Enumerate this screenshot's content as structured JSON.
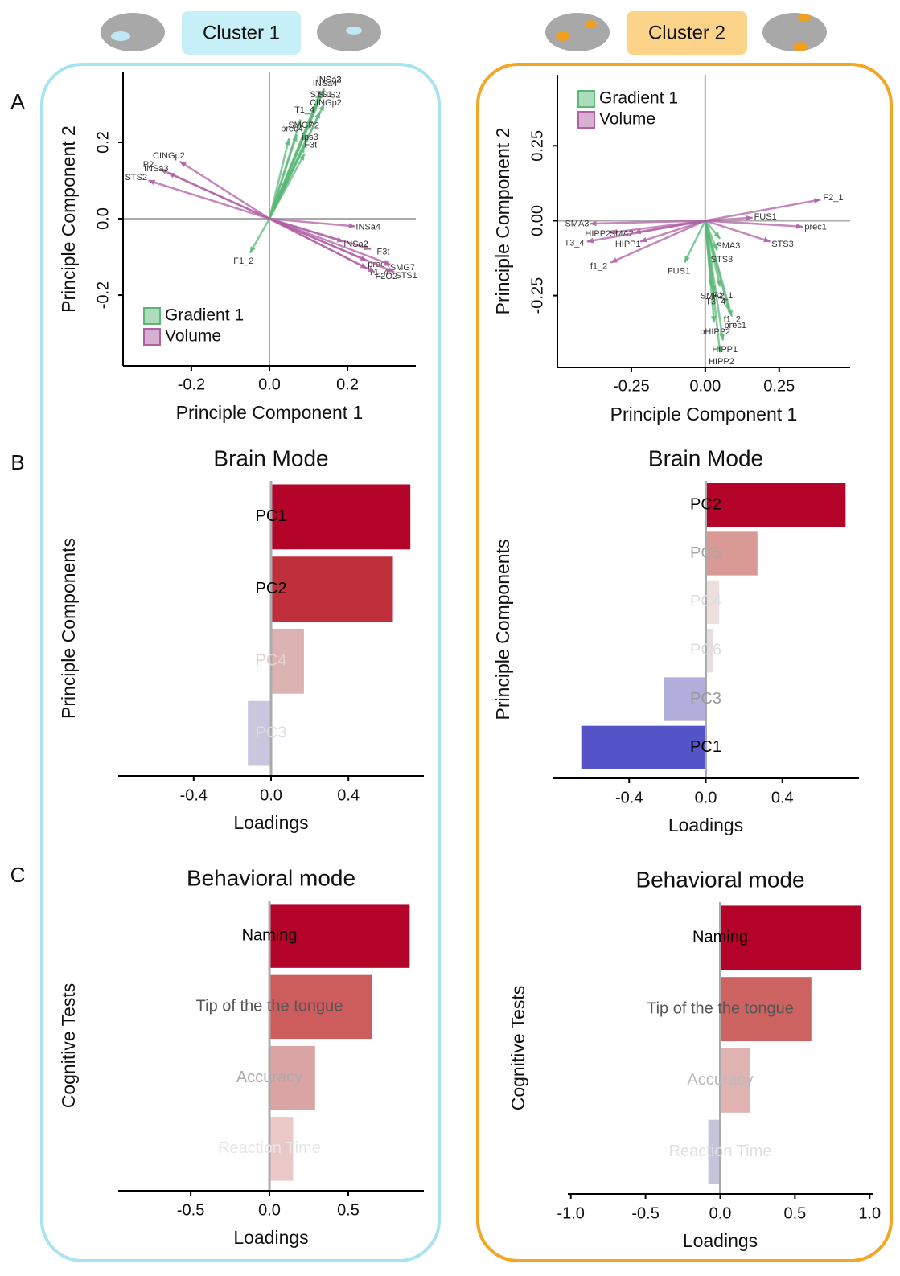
{
  "clusters": [
    "Cluster 1",
    "Cluster 2"
  ],
  "panel_letters": [
    "A",
    "B",
    "C"
  ],
  "chart_data": [
    {
      "type": "biplot",
      "xlabel": "Principle Component 1",
      "ylabel": "Principle Component 2",
      "xlim": [
        -0.375,
        0.375
      ],
      "ylim": [
        -0.385,
        0.383
      ],
      "xticks": [
        -0.2,
        {
          "value": 0,
          "label": "0.0"
        },
        0.2
      ],
      "yticks": [
        -0.2,
        {
          "value": 0,
          "label": "0.0"
        },
        0.2
      ],
      "legend": "bottom-left",
      "series": [
        {
          "name": "Gradient 1",
          "color": "#5cb878",
          "labels": [
            "INSa2",
            "INSa4",
            "INSa3",
            "STS1",
            "STS2",
            "T1_4",
            "CINGp2",
            "SMG7",
            "P2",
            "ips3",
            "prec4",
            "F3t",
            "F1_2"
          ],
          "x": [
            0.14,
            0.13,
            0.14,
            0.12,
            0.14,
            0.08,
            0.13,
            0.07,
            0.1,
            0.09,
            0.05,
            0.09,
            -0.05
          ],
          "y": [
            0.34,
            0.33,
            0.34,
            0.3,
            0.3,
            0.26,
            0.28,
            0.22,
            0.22,
            0.19,
            0.21,
            0.17,
            -0.09
          ]
        },
        {
          "name": "Volume",
          "color": "#b060a4",
          "labels": [
            "CINGp2",
            "P2",
            "INSa3",
            "STS2",
            "INSa4",
            "F3t",
            "INSa2",
            "prec4",
            "SMG7",
            "T1_4",
            "STS1",
            "F2O2"
          ],
          "x": [
            -0.23,
            -0.28,
            -0.26,
            -0.31,
            0.22,
            0.26,
            0.19,
            0.25,
            0.31,
            0.25,
            0.32,
            0.27
          ],
          "y": [
            0.15,
            0.13,
            0.12,
            0.1,
            -0.02,
            -0.08,
            -0.06,
            -0.11,
            -0.12,
            -0.13,
            -0.14,
            -0.14
          ]
        }
      ]
    },
    {
      "type": "biplot",
      "xlabel": "Principle Component 1",
      "ylabel": "Principle Component 2",
      "xlim": [
        -0.5,
        0.49
      ],
      "ylim": [
        -0.49,
        0.487
      ],
      "xticks": [
        -0.25,
        {
          "value": 0,
          "label": "0.00"
        },
        0.25
      ],
      "yticks": [
        -0.25,
        {
          "value": 0,
          "label": "0.00"
        },
        0.25
      ],
      "legend": "top-left",
      "series": [
        {
          "name": "Gradient 1",
          "color": "#5cb878",
          "labels": [
            "HIPP2",
            "pHIPP2",
            "HIPP1",
            "prec1",
            "f1_2",
            "F2_1",
            "T3_4",
            "SMA2",
            "FUS1",
            "STS3",
            "SMA3"
          ],
          "x": [
            0.05,
            0.03,
            0.06,
            0.09,
            0.08,
            0.05,
            0.03,
            0.02,
            -0.07,
            0.04,
            0.05
          ],
          "y": [
            -0.44,
            -0.34,
            -0.4,
            -0.32,
            -0.3,
            -0.22,
            -0.24,
            -0.22,
            -0.14,
            -0.1,
            -0.06
          ]
        },
        {
          "name": "Volume",
          "color": "#b060a4",
          "labels": [
            "F2_1",
            "prec1",
            "FUS1",
            "STS3",
            "SMA3",
            "HIPP2",
            "SMA2",
            "T3_4",
            "HIPP1",
            "f1_2"
          ],
          "x": [
            0.39,
            0.33,
            0.16,
            0.22,
            -0.39,
            -0.32,
            -0.24,
            -0.4,
            -0.22,
            -0.32
          ],
          "y": [
            0.07,
            -0.02,
            0.01,
            -0.07,
            -0.01,
            -0.04,
            -0.04,
            -0.07,
            -0.07,
            -0.14
          ]
        }
      ]
    },
    {
      "type": "hbar",
      "title": "Brain Mode",
      "xlabel": "Loadings",
      "ylabel": "Principle Components",
      "xlim": [
        -0.79,
        0.79
      ],
      "xticks": [
        -0.4,
        {
          "value": 0,
          "label": "0.0"
        },
        0.4
      ],
      "categories": [
        "PC1",
        "PC2",
        "PC4",
        "PC3"
      ],
      "values": [
        0.72,
        0.63,
        0.17,
        -0.12
      ],
      "colors": [
        "#b5042a",
        "#c0303c",
        "#dcb2b2",
        "#c9c6de"
      ],
      "label_colors": [
        "#000000",
        "#000000",
        "#e6cfcf",
        "#dcdce8"
      ]
    },
    {
      "type": "hbar",
      "title": "Brain Mode",
      "xlabel": "Loadings",
      "ylabel": "Principle Components",
      "xlim": [
        -0.8,
        0.8
      ],
      "xticks": [
        -0.4,
        {
          "value": 0,
          "label": "0.0"
        },
        0.4
      ],
      "categories": [
        "PC2",
        "PC5",
        "PC4",
        "PC6",
        "PC3",
        "PC1"
      ],
      "values": [
        0.73,
        0.27,
        0.07,
        0.04,
        -0.22,
        -0.65
      ],
      "colors": [
        "#b5042a",
        "#d99a95",
        "#eedfdf",
        "#e6dede",
        "#b2aedb",
        "#5454c8"
      ],
      "label_colors": [
        "#000000",
        "#a8a8a8",
        "#dddddd",
        "#dddddd",
        "#999999",
        "#000000"
      ]
    },
    {
      "type": "hbar",
      "title": "Behavioral mode",
      "xlabel": "Loadings",
      "ylabel": "Cognitive Tests",
      "xlim": [
        -0.96,
        0.98
      ],
      "xticks": [
        -0.5,
        {
          "value": 0,
          "label": "0.0"
        },
        0.5
      ],
      "categories": [
        "Naming",
        "Tip of the the tongue",
        "Accuracy",
        "Reaction Time"
      ],
      "values": [
        0.89,
        0.65,
        0.29,
        0.15
      ],
      "colors": [
        "#b5042a",
        "#cd5c5c",
        "#dba4a4",
        "#ebc8c8"
      ],
      "label_colors": [
        "#000000",
        "#555555",
        "#aaaaaa",
        "#e6e6e6"
      ]
    },
    {
      "type": "hbar",
      "title": "Behavioral mode",
      "xlabel": "Loadings",
      "ylabel": "Cognitive Tests",
      "xlim": [
        -1.02,
        1.02
      ],
      "xticks": [
        {
          "value": -1,
          "label": "-1.0"
        },
        -0.5,
        {
          "value": 0,
          "label": "0.0"
        },
        0.5,
        {
          "value": 1,
          "label": "1.0"
        }
      ],
      "categories": [
        "Naming",
        "Tip of the the tongue",
        "Accuracy",
        "Reaction Time"
      ],
      "values": [
        0.94,
        0.61,
        0.2,
        -0.08
      ],
      "colors": [
        "#b5042a",
        "#ce6461",
        "#e0b2b2",
        "#c6c4da"
      ],
      "label_colors": [
        "#000000",
        "#555555",
        "#bbbbbb",
        "#e0e0e0"
      ]
    }
  ]
}
